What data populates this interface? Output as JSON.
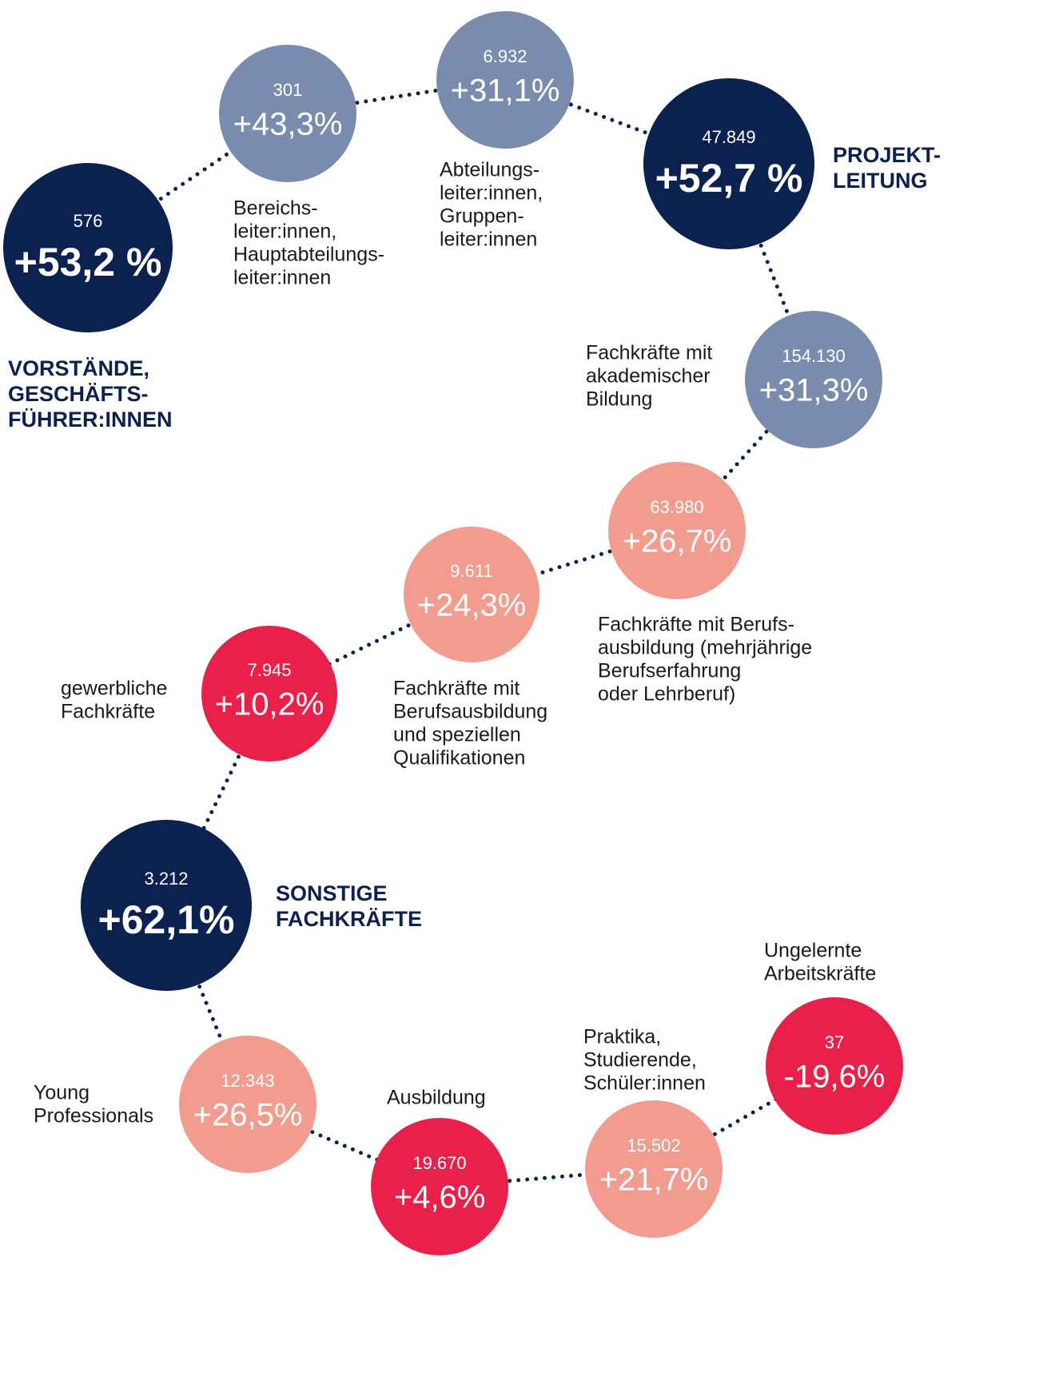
{
  "nodes": [
    {
      "number": "576",
      "change": "+53,2 %",
      "label": [
        "VORSTÄNDE,",
        "GESCHÄFTS-",
        "FÜHRER:INNEN"
      ]
    },
    {
      "number": "301",
      "change": "+43,3%",
      "label": [
        "Bereichs-",
        "leiter:innen,",
        "Hauptabteilungs-",
        "leiter:innen"
      ]
    },
    {
      "number": "6.932",
      "change": "+31,1%",
      "label": [
        "Abteilungs-",
        "leiter:innen,",
        "Gruppen-",
        "leiter:innen"
      ]
    },
    {
      "number": "47.849",
      "change": "+52,7 %",
      "label": [
        "PROJEKT-",
        "LEITUNG"
      ]
    },
    {
      "number": "154.130",
      "change": "+31,3%",
      "label": [
        "Fachkräfte mit",
        "akademischer",
        "Bildung"
      ]
    },
    {
      "number": "63.980",
      "change": "+26,7%",
      "label": [
        "Fachkräfte mit Berufs-",
        "ausbildung (mehrjährige",
        "Berufserfahrung",
        "oder Lehrberuf)"
      ]
    },
    {
      "number": "9.611",
      "change": "+24,3%",
      "label": [
        "Fachkräfte mit",
        "Berufsausbildung",
        "und speziellen",
        "Qualifikationen"
      ]
    },
    {
      "number": "7.945",
      "change": "+10,2%",
      "label": [
        "gewerbliche",
        "Fachkräfte"
      ]
    },
    {
      "number": "3.212",
      "change": "+62,1%",
      "label": [
        "SONSTIGE",
        "FACHKRÄFTE"
      ]
    },
    {
      "number": "12.343",
      "change": "+26,5%",
      "label": [
        "Young",
        "Professionals"
      ]
    },
    {
      "number": "19.670",
      "change": "+4,6%",
      "label": [
        "Ausbildung"
      ]
    },
    {
      "number": "15.502",
      "change": "+21,7%",
      "label": [
        "Praktika,",
        "Studierende,",
        "Schüler:innen"
      ]
    },
    {
      "number": "37",
      "change": "-19,6%",
      "label": [
        "Ungelernte",
        "Arbeitskräfte"
      ]
    }
  ]
}
